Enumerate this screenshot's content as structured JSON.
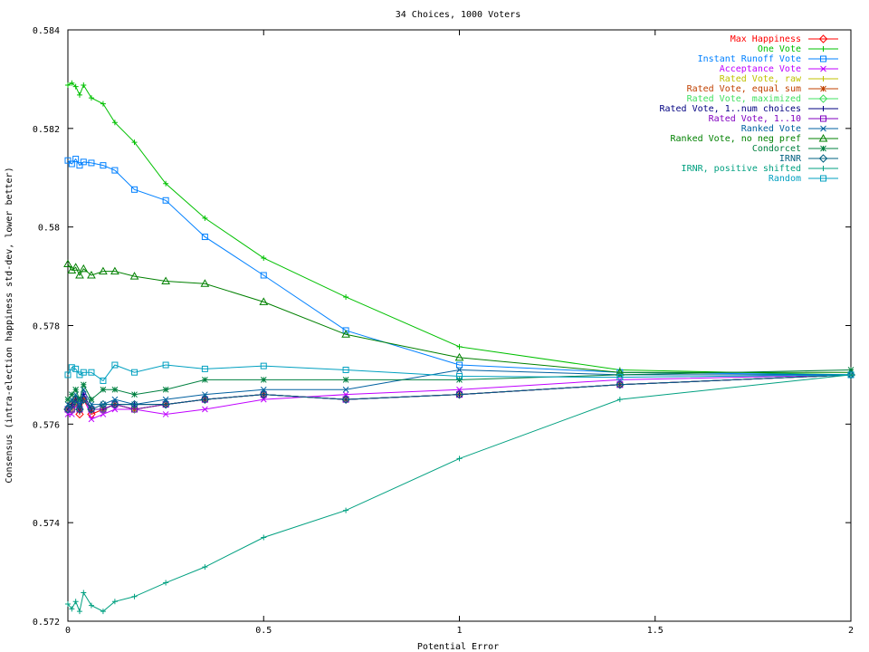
{
  "chart_data": {
    "type": "line",
    "title": "34 Choices, 1000 Voters",
    "xlabel": "Potential Error",
    "ylabel": "Consensus (intra-election happiness std-dev, lower better)",
    "xlim": [
      0,
      2
    ],
    "ylim": [
      0.572,
      0.584
    ],
    "xticks": [
      0,
      0.5,
      1,
      1.5,
      2
    ],
    "xtick_labels": [
      "0",
      "0.5",
      "1",
      "1.5",
      "2"
    ],
    "yticks": [
      0.572,
      0.574,
      0.576,
      0.578,
      0.58,
      0.582,
      0.584
    ],
    "ytick_labels": [
      "0.572",
      "0.574",
      "0.576",
      "0.578",
      "0.58",
      "0.582",
      "0.584"
    ],
    "grid": false,
    "legend_position": "top-right",
    "x": [
      0,
      0.01,
      0.02,
      0.03,
      0.04,
      0.06,
      0.09,
      0.12,
      0.17,
      0.25,
      0.35,
      0.5,
      0.71,
      1,
      1.41,
      2
    ],
    "series": [
      {
        "name": "Max Happiness",
        "color": "#ff0000",
        "marker": "diamond",
        "values": [
          0.5763,
          0.5763,
          0.5765,
          0.5762,
          0.5765,
          0.5762,
          0.5763,
          0.5764,
          0.5763,
          0.5764,
          0.5765,
          0.5766,
          0.5765,
          0.5766,
          0.5768,
          0.577
        ]
      },
      {
        "name": "One Vote",
        "color": "#00c000",
        "marker": "plus",
        "values": [
          0.58288,
          0.58292,
          0.58285,
          0.58268,
          0.58288,
          0.58262,
          0.5825,
          0.58212,
          0.58172,
          0.58088,
          0.58018,
          0.57937,
          0.57858,
          0.57757,
          0.5771,
          0.577
        ]
      },
      {
        "name": "Instant Runoff Vote",
        "color": "#0080ff",
        "marker": "square",
        "values": [
          0.58135,
          0.58128,
          0.58138,
          0.58125,
          0.58132,
          0.5813,
          0.58125,
          0.58115,
          0.58076,
          0.58054,
          0.5798,
          0.57902,
          0.5779,
          0.5772,
          0.57705,
          0.577
        ]
      },
      {
        "name": "Acceptance Vote",
        "color": "#c000ff",
        "marker": "x",
        "values": [
          0.5762,
          0.5762,
          0.5765,
          0.5763,
          0.5766,
          0.5761,
          0.5762,
          0.5763,
          0.5763,
          0.5762,
          0.5763,
          0.5765,
          0.5766,
          0.5767,
          0.5769,
          0.577
        ]
      },
      {
        "name": "Rated Vote, raw",
        "color": "#c0c000",
        "marker": "plus",
        "values": [
          0.5763,
          0.5763,
          0.5764,
          0.5763,
          0.5765,
          0.5763,
          0.5763,
          0.5764,
          0.5763,
          0.5764,
          0.5765,
          0.5766,
          0.5765,
          0.5766,
          0.5768,
          0.577
        ]
      },
      {
        "name": "Rated Vote, equal sum",
        "color": "#c04000",
        "marker": "star",
        "values": [
          0.5763,
          0.5764,
          0.5765,
          0.5763,
          0.5765,
          0.5763,
          0.5763,
          0.5764,
          0.5763,
          0.5764,
          0.5765,
          0.5766,
          0.5765,
          0.5766,
          0.5768,
          0.577
        ]
      },
      {
        "name": "Rated Vote, maximized",
        "color": "#40e060",
        "marker": "diamond",
        "values": [
          0.5763,
          0.5763,
          0.5765,
          0.5763,
          0.5765,
          0.5763,
          0.5763,
          0.5764,
          0.5763,
          0.5764,
          0.5765,
          0.5766,
          0.5765,
          0.5766,
          0.5768,
          0.577
        ]
      },
      {
        "name": "Rated Vote, 1..num choices",
        "color": "#000080",
        "marker": "plus",
        "values": [
          0.5763,
          0.5764,
          0.5765,
          0.5763,
          0.5766,
          0.5763,
          0.5763,
          0.5764,
          0.5764,
          0.5764,
          0.5765,
          0.5766,
          0.5765,
          0.5766,
          0.5768,
          0.577
        ]
      },
      {
        "name": "Rated Vote, 1..10",
        "color": "#8000c0",
        "marker": "square",
        "values": [
          0.5763,
          0.5763,
          0.5764,
          0.5763,
          0.5765,
          0.5763,
          0.5763,
          0.5764,
          0.5763,
          0.5764,
          0.5765,
          0.5766,
          0.5765,
          0.5766,
          0.5768,
          0.577
        ]
      },
      {
        "name": "Ranked Vote",
        "color": "#0060a0",
        "marker": "x",
        "values": [
          0.5764,
          0.5765,
          0.5766,
          0.5764,
          0.5767,
          0.5764,
          0.5764,
          0.5765,
          0.5764,
          0.5765,
          0.5766,
          0.5767,
          0.5767,
          0.5771,
          0.577,
          0.577
        ]
      },
      {
        "name": "Ranked Vote, no neg pref",
        "color": "#008000",
        "marker": "triangle",
        "values": [
          0.57925,
          0.57912,
          0.57918,
          0.57902,
          0.57915,
          0.57902,
          0.5791,
          0.5791,
          0.579,
          0.5789,
          0.57885,
          0.57848,
          0.57782,
          0.57735,
          0.57705,
          0.57705
        ]
      },
      {
        "name": "Condorcet",
        "color": "#008040",
        "marker": "star",
        "values": [
          0.5765,
          0.5766,
          0.5767,
          0.5765,
          0.5768,
          0.5765,
          0.5767,
          0.5767,
          0.5766,
          0.5767,
          0.5769,
          0.5769,
          0.5769,
          0.5769,
          0.577,
          0.5771
        ]
      },
      {
        "name": "IRNR",
        "color": "#006080",
        "marker": "diamond",
        "values": [
          0.5763,
          0.5764,
          0.5765,
          0.5763,
          0.5765,
          0.5763,
          0.5764,
          0.5764,
          0.5764,
          0.5764,
          0.5765,
          0.5766,
          0.5765,
          0.5766,
          0.5768,
          0.577
        ]
      },
      {
        "name": "IRNR, positive shifted",
        "color": "#00a080",
        "marker": "plus",
        "values": [
          0.57235,
          0.57225,
          0.5724,
          0.5722,
          0.57258,
          0.57232,
          0.5722,
          0.5724,
          0.5725,
          0.57278,
          0.5731,
          0.5737,
          0.57425,
          0.5753,
          0.5765,
          0.577
        ]
      },
      {
        "name": "Random",
        "color": "#00a0c0",
        "marker": "square",
        "values": [
          0.577,
          0.57715,
          0.57712,
          0.577,
          0.57705,
          0.57705,
          0.57688,
          0.5772,
          0.57705,
          0.5772,
          0.57712,
          0.57718,
          0.5771,
          0.57697,
          0.57695,
          0.577
        ]
      }
    ]
  }
}
